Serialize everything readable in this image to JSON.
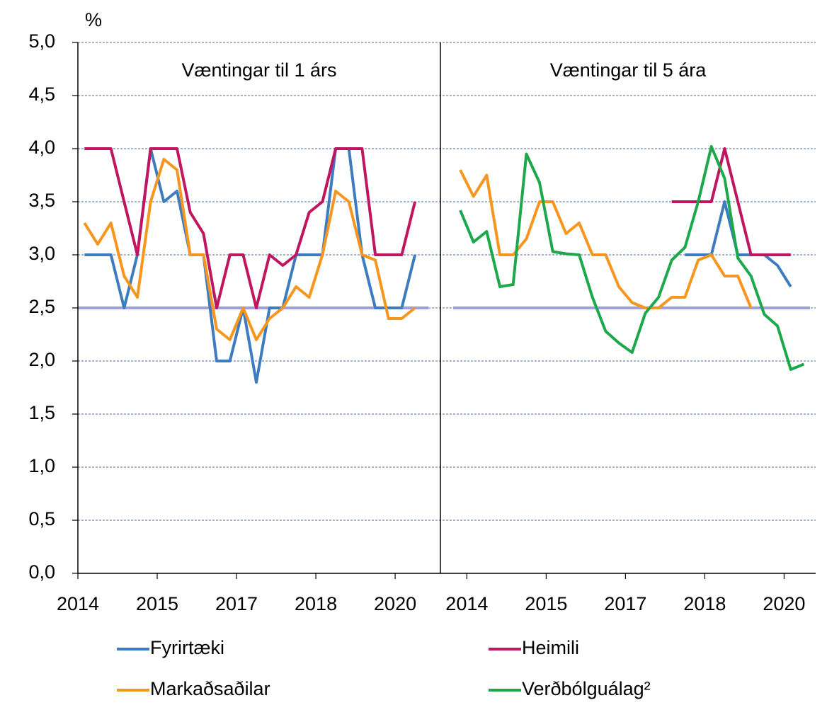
{
  "chart_data": {
    "type": "line",
    "y_label": "%",
    "ylim": [
      0,
      5
    ],
    "yticks": [
      {
        "value": 0,
        "label": "0,0"
      },
      {
        "value": 0.5,
        "label": "0,5"
      },
      {
        "value": 1,
        "label": "1,0"
      },
      {
        "value": 1.5,
        "label": "1,5"
      },
      {
        "value": 2,
        "label": "2,0"
      },
      {
        "value": 2.5,
        "label": "2,5"
      },
      {
        "value": 3,
        "label": "3,0"
      },
      {
        "value": 3.5,
        "label": "3,5"
      },
      {
        "value": 4,
        "label": "4,0"
      },
      {
        "value": 4.5,
        "label": "4,5"
      },
      {
        "value": 5,
        "label": "5,0"
      }
    ],
    "grid": true,
    "reference_line": 2.5,
    "reference_color": "#9f9fe0",
    "panels": [
      {
        "title": "Væntingar til 1 árs",
        "categories": [
          "2014",
          null,
          null,
          null,
          null,
          null,
          "2015",
          null,
          null,
          null,
          null,
          null,
          "2017",
          null,
          null,
          null,
          null,
          null,
          "2018",
          null,
          null,
          null,
          null,
          null,
          "2020",
          null
        ]
      },
      {
        "title": "Væntingar til 5 ára",
        "categories": [
          null,
          "2014",
          null,
          null,
          null,
          null,
          null,
          "2015",
          null,
          null,
          null,
          null,
          null,
          "2017",
          null,
          null,
          null,
          null,
          null,
          "2018",
          null,
          null,
          null,
          null,
          null,
          "2020",
          null
        ]
      }
    ],
    "series": [
      {
        "name": "Fyrirtæki",
        "color": "#3d7cc0",
        "values": [
          [
            3.0,
            3.0,
            3.0,
            2.5,
            3.0,
            4.0,
            3.5,
            3.6,
            3.0,
            3.0,
            2.0,
            2.0,
            2.5,
            1.8,
            2.5,
            2.5,
            3.0,
            3.0,
            3.0,
            4.0,
            4.0,
            3.0,
            2.5,
            2.5,
            2.5,
            3.0
          ],
          [
            null,
            null,
            null,
            null,
            null,
            null,
            null,
            null,
            null,
            null,
            null,
            null,
            null,
            null,
            null,
            null,
            null,
            3.0,
            3.0,
            3.0,
            3.5,
            3.0,
            3.0,
            3.0,
            2.9,
            2.7,
            null
          ]
        ]
      },
      {
        "name": "Heimili",
        "color": "#c0155f",
        "values": [
          [
            4.0,
            4.0,
            4.0,
            3.5,
            3.0,
            4.0,
            4.0,
            4.0,
            3.4,
            3.2,
            2.5,
            3.0,
            3.0,
            2.5,
            3.0,
            2.9,
            3.0,
            3.4,
            3.5,
            4.0,
            4.0,
            4.0,
            3.0,
            3.0,
            3.0,
            3.5
          ],
          [
            null,
            null,
            null,
            null,
            null,
            null,
            null,
            null,
            null,
            null,
            null,
            null,
            null,
            null,
            null,
            null,
            3.5,
            3.5,
            3.5,
            3.5,
            4.0,
            3.5,
            3.0,
            3.0,
            3.0,
            3.0,
            null
          ]
        ]
      },
      {
        "name": "Markaðsaðilar",
        "color": "#f7961f",
        "values": [
          [
            3.3,
            3.1,
            3.3,
            2.8,
            2.6,
            3.5,
            3.9,
            3.8,
            3.0,
            3.0,
            2.3,
            2.2,
            2.5,
            2.2,
            2.4,
            2.5,
            2.7,
            2.6,
            3.0,
            3.6,
            3.5,
            3.0,
            2.95,
            2.4,
            2.4,
            2.5
          ],
          [
            3.8,
            3.55,
            3.75,
            3.0,
            3.0,
            3.15,
            3.5,
            3.5,
            3.2,
            3.3,
            3.0,
            3.0,
            2.7,
            2.55,
            2.5,
            2.5,
            2.6,
            2.6,
            2.95,
            3.0,
            2.8,
            2.8,
            2.5,
            null,
            null,
            null,
            null
          ]
        ]
      },
      {
        "name": "Verðbólguálag²",
        "color": "#1ca84b",
        "values": [
          [
            null,
            null,
            null,
            null,
            null,
            null,
            null,
            null,
            null,
            null,
            null,
            null,
            null,
            null,
            null,
            null,
            null,
            null,
            null,
            null,
            null,
            null,
            null,
            null,
            null,
            null
          ],
          [
            3.42,
            3.12,
            3.22,
            2.7,
            2.72,
            3.95,
            3.68,
            3.03,
            3.01,
            3.0,
            2.6,
            2.28,
            2.17,
            2.08,
            2.45,
            2.6,
            2.95,
            3.07,
            3.5,
            4.02,
            3.72,
            2.97,
            2.8,
            2.44,
            2.33,
            1.92,
            1.97
          ]
        ]
      }
    ]
  }
}
